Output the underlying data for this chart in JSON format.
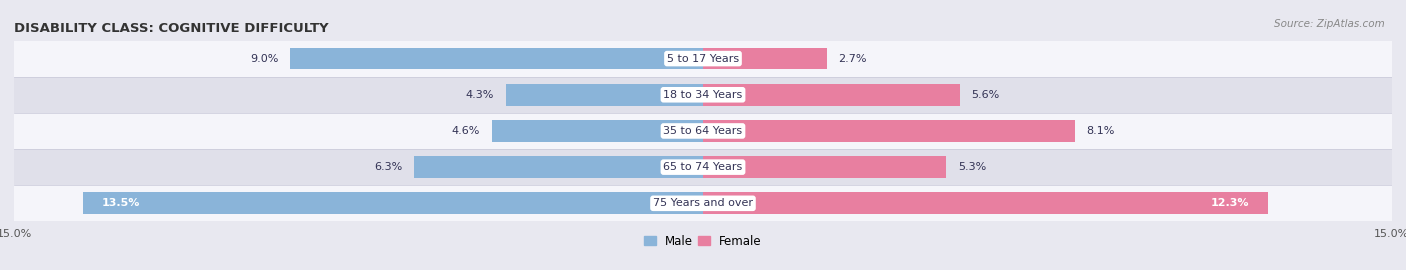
{
  "title": "DISABILITY CLASS: COGNITIVE DIFFICULTY",
  "source": "Source: ZipAtlas.com",
  "categories": [
    "5 to 17 Years",
    "18 to 34 Years",
    "35 to 64 Years",
    "65 to 74 Years",
    "75 Years and over"
  ],
  "male_values": [
    9.0,
    4.3,
    4.6,
    6.3,
    13.5
  ],
  "female_values": [
    2.7,
    5.6,
    8.1,
    5.3,
    12.3
  ],
  "xlim": 15.0,
  "male_color": "#8ab4d9",
  "female_color": "#e87fa0",
  "bar_height": 0.6,
  "background_color": "#e8e8f0",
  "row_bg_light": "#f5f5fa",
  "row_bg_dark": "#e0e0ea",
  "label_color": "#333355",
  "title_fontsize": 9.5,
  "label_fontsize": 8,
  "value_fontsize": 8,
  "axis_label_fontsize": 8,
  "legend_fontsize": 8.5
}
